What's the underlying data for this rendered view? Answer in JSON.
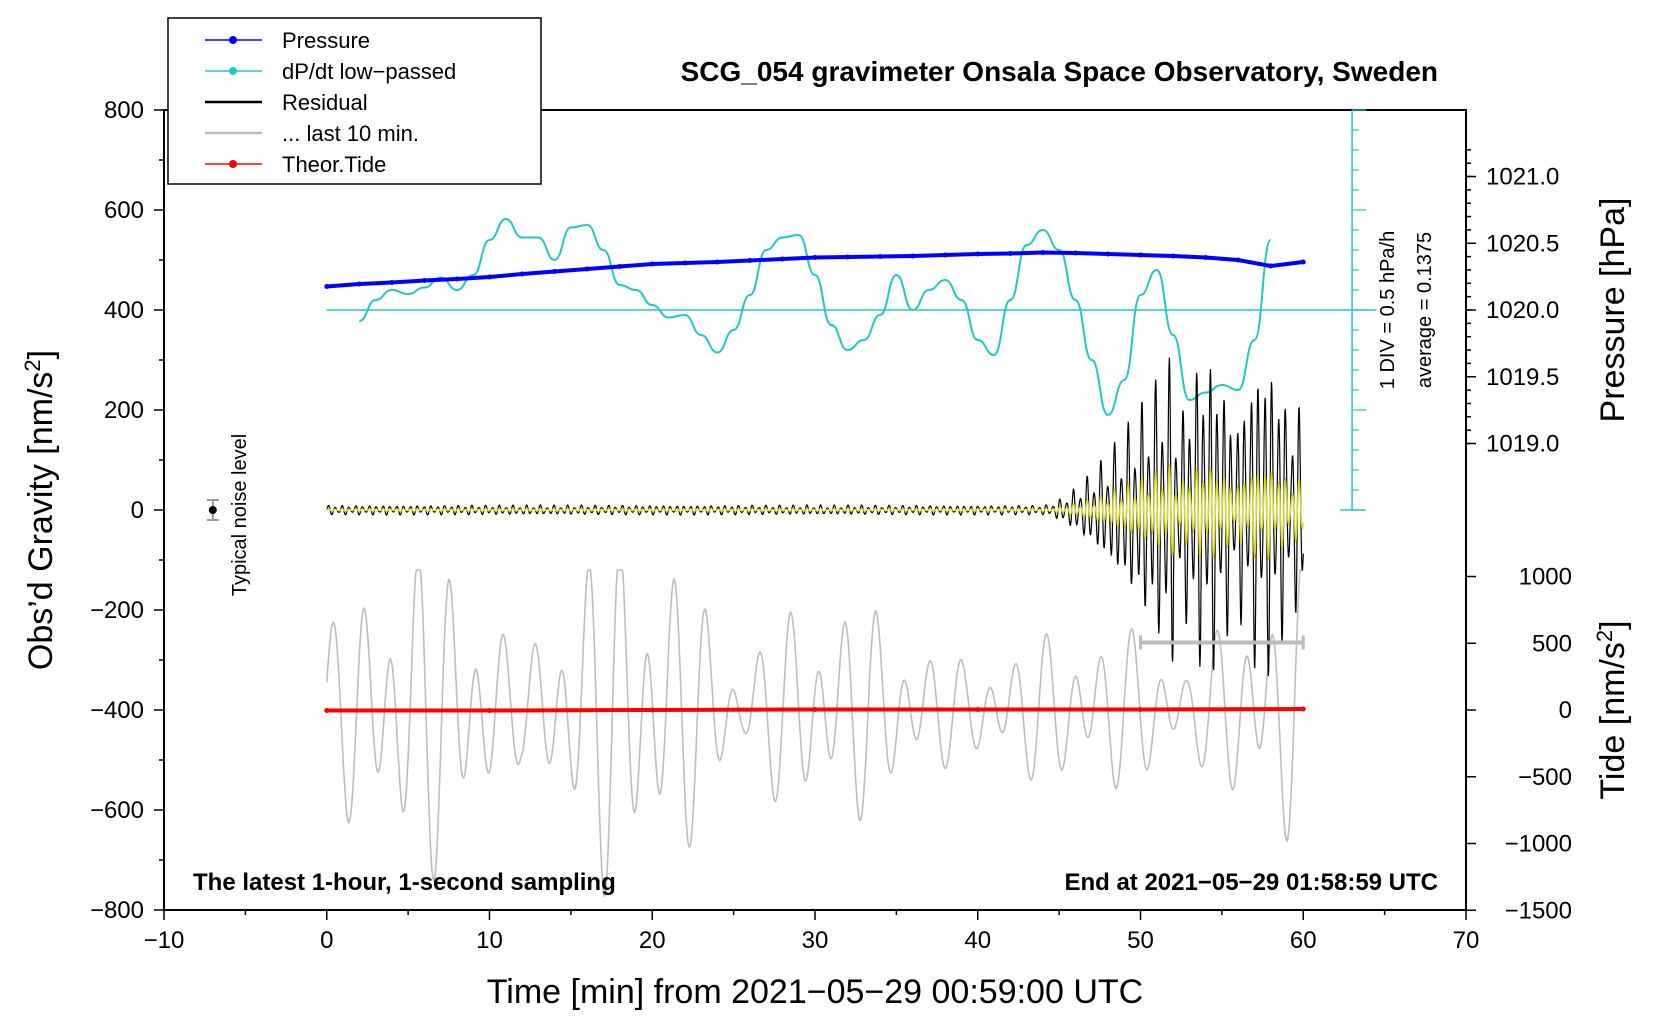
{
  "chart_data": {
    "type": "line",
    "title": "SCG_054 gravimeter Onsala Space Observatory, Sweden",
    "xlabel": "Time [min] from 2021−05−29 00:59:00 UTC",
    "ylabel_left": "Obs’d Gravity [nm/s",
    "ylabel_left_sup": "2",
    "ylabel_left_close": "]",
    "ylabel_right_top": "Pressure [hPa]",
    "ylabel_right_bottom": "Tide [nm/s",
    "ylabel_right_bottom_sup": "2",
    "ylabel_right_bottom_close": "]",
    "xlim": [
      -10,
      70
    ],
    "ylim_left": [
      -800,
      800
    ],
    "x_ticks": [
      -10,
      0,
      10,
      20,
      30,
      40,
      50,
      60,
      70
    ],
    "x_tick_labels": [
      "−10",
      "0",
      "10",
      "20",
      "30",
      "40",
      "50",
      "60",
      "70"
    ],
    "y_left_ticks": [
      800,
      600,
      400,
      200,
      0,
      -200,
      -400,
      -600,
      -800
    ],
    "y_left_tick_labels": [
      "800",
      "600",
      "400",
      "200",
      "0",
      "−200",
      "−400",
      "−600",
      "−800"
    ],
    "pressure_axis": {
      "ticks": [
        1021.0,
        1020.5,
        1020.0,
        1019.5,
        1019.0
      ],
      "tick_labels": [
        "1021.0",
        "1020.5",
        "1020.0",
        "1019.5",
        "1019.0"
      ],
      "maps_to_gravity": {
        "p1": 1020.0,
        "g1": 400,
        "p2": 1021.0,
        "g2": 667
      }
    },
    "tide_axis": {
      "ticks": [
        1000,
        500,
        0,
        -500,
        -1000,
        -1500
      ],
      "tick_labels": [
        "1000",
        "500",
        "0",
        "−500",
        "−1000",
        "−1500"
      ],
      "maps_to_gravity": {
        "t1": 0,
        "g1": -400,
        "t2": 1000,
        "g2": -133
      }
    },
    "dpdt_scale": {
      "label": "1 DIV = 0.5 hPa/h",
      "average": "average = 0.1375",
      "baseline_gravity": 400,
      "scale_bar_x": 63,
      "scale_bar_top_gravity": 800,
      "scale_bar_bottom_gravity": 0
    },
    "noise_marker": {
      "x": -7,
      "y": 0,
      "err": 20,
      "label": "Typical noise level"
    },
    "last_10min_bar": {
      "x_start": 50,
      "x_end": 60,
      "y": -265
    },
    "annotations": {
      "left": "The latest 1-hour, 1-second sampling",
      "right": "End at 2021−05−29 01:58:59 UTC"
    },
    "legend": [
      {
        "label": "Pressure",
        "color": "#0000ff",
        "marker": true
      },
      {
        "label": "dP/dt low−passed",
        "color": "#20c8c8",
        "marker": true
      },
      {
        "label": "Residual",
        "color": "#000000",
        "marker": false
      },
      {
        "label": "... last 10 min.",
        "color": "#bbbbbb",
        "marker": false
      },
      {
        "label": "Theor.Tide",
        "color": "#ff0000",
        "marker": true
      }
    ],
    "series": [
      {
        "name": "Pressure",
        "color": "#0000ff",
        "x": [
          0,
          2,
          4,
          6,
          8,
          10,
          12,
          14,
          16,
          18,
          20,
          22,
          24,
          26,
          28,
          30,
          32,
          34,
          36,
          38,
          40,
          42,
          44,
          46,
          48,
          50,
          52,
          54,
          56,
          58,
          60
        ],
        "y": [
          447,
          452,
          455,
          459,
          462,
          466,
          472,
          477,
          482,
          487,
          492,
          494,
          496,
          499,
          502,
          505,
          506,
          507,
          508,
          510,
          512,
          513,
          515,
          514,
          512,
          510,
          508,
          505,
          500,
          488,
          496
        ]
      },
      {
        "name": "dP/dt low-passed",
        "color": "#20c8c8",
        "x": [
          2,
          3,
          4,
          5,
          6,
          7,
          8,
          9,
          10,
          11,
          12,
          13,
          14,
          15,
          16,
          17,
          18,
          19,
          20,
          21,
          22,
          23,
          24,
          25,
          26,
          27,
          28,
          29,
          30,
          31,
          32,
          33,
          34,
          35,
          36,
          37,
          38,
          39,
          40,
          41,
          42,
          43,
          44,
          45,
          46,
          47,
          48,
          49,
          50,
          51,
          52,
          53,
          54,
          55,
          56,
          57,
          58
        ],
        "y": [
          378,
          420,
          440,
          432,
          445,
          465,
          440,
          470,
          540,
          582,
          545,
          545,
          500,
          565,
          570,
          520,
          450,
          440,
          410,
          385,
          390,
          350,
          315,
          360,
          430,
          520,
          545,
          550,
          470,
          370,
          320,
          340,
          390,
          470,
          400,
          440,
          460,
          420,
          340,
          310,
          420,
          530,
          560,
          520,
          420,
          300,
          190,
          260,
          430,
          480,
          350,
          220,
          235,
          250,
          240,
          340,
          540
        ]
      },
      {
        "name": "Theor.Tide",
        "color": "#ff0000",
        "x": [
          0,
          10,
          20,
          30,
          40,
          50,
          60
        ],
        "y": [
          -401,
          -401,
          -400,
          -399,
          -399,
          -399,
          -398
        ]
      }
    ],
    "residual": {
      "description": "noisy residual oscillation centered on 0, amplitude growing after 45 min",
      "quiet_amplitude": 10,
      "peak_amplitude": 340,
      "x_range": [
        0,
        60
      ]
    },
    "last10": {
      "description": "last 10 min of residual replotted over 0-60 min, centered on -400",
      "center": -400,
      "peak_amplitude": 400,
      "x_range": [
        0,
        60
      ]
    }
  }
}
